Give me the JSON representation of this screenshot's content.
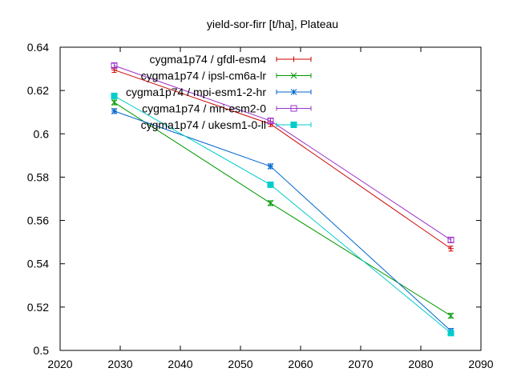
{
  "chart_data": {
    "type": "line",
    "title": "yield-sor-firr [t/ha], Plateau",
    "xlabel": "",
    "ylabel": "",
    "xlim": [
      2020,
      2090
    ],
    "ylim": [
      0.5,
      0.64
    ],
    "xticks": [
      "2020",
      "2030",
      "2040",
      "2050",
      "2060",
      "2070",
      "2080",
      "2090"
    ],
    "yticks": [
      "0.5",
      "0.52",
      "0.54",
      "0.56",
      "0.58",
      "0.6",
      "0.62",
      "0.64"
    ],
    "grid": false,
    "legend_position": "top-right",
    "x": [
      2029,
      2055,
      2085
    ],
    "series": [
      {
        "name": "cygma1p74 / gfdl-esm4",
        "color": "#cc0000",
        "marker": "plus",
        "values": [
          0.6295,
          0.6045,
          0.547
        ]
      },
      {
        "name": "cygma1p74 / ipsl-cm6a-lr",
        "color": "#009900",
        "marker": "cross",
        "values": [
          0.6145,
          0.568,
          0.516
        ]
      },
      {
        "name": "cygma1p74 / mpi-esm1-2-hr",
        "color": "#0066cc",
        "marker": "star",
        "values": [
          0.6105,
          0.585,
          0.509
        ]
      },
      {
        "name": "cygma1p74 / mri-esm2-0",
        "color": "#9933cc",
        "marker": "square-open",
        "values": [
          0.6315,
          0.606,
          0.551
        ]
      },
      {
        "name": "cygma1p74 / ukesm1-0-ll",
        "color": "#00cccc",
        "marker": "square-filled",
        "values": [
          0.6175,
          0.5765,
          0.508
        ]
      }
    ]
  }
}
